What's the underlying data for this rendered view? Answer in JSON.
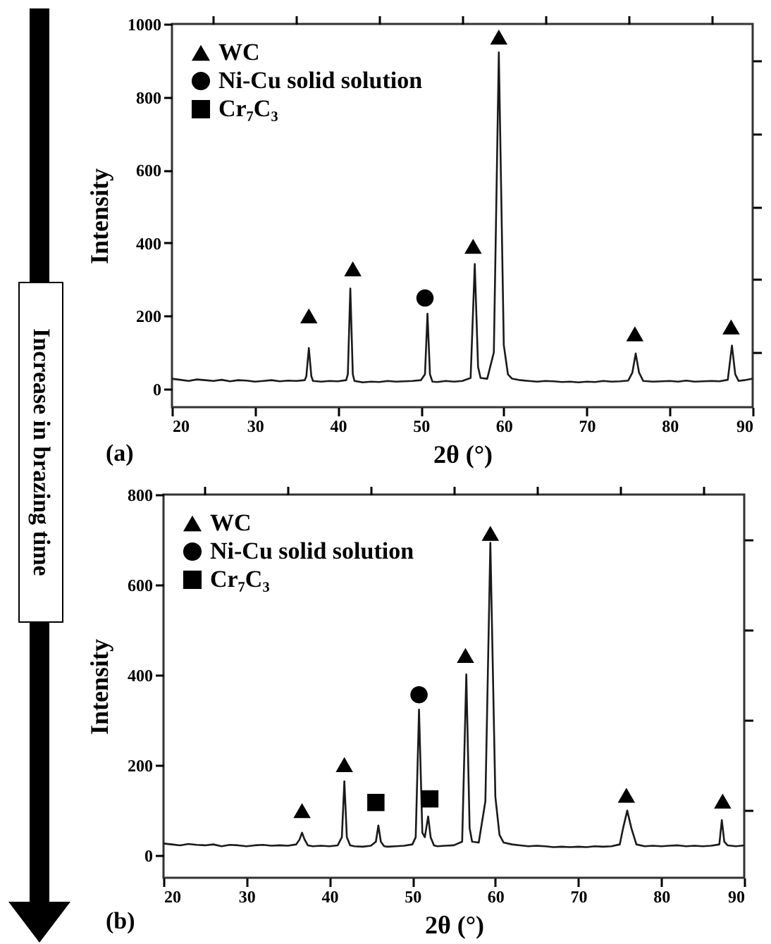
{
  "chart_data": [
    {
      "type": "line",
      "xlabel": "2θ (°)",
      "ylabel": "Intensity",
      "xlim": [
        20,
        90
      ],
      "ylim": [
        -50,
        1000
      ],
      "xticks": [
        20,
        {
          "value": 25,
          "label": null
        },
        30,
        {
          "value": 35,
          "label": null
        },
        40,
        {
          "value": 45,
          "label": null
        },
        50,
        {
          "value": 55,
          "label": null
        },
        60,
        {
          "value": 65,
          "label": null
        },
        70,
        {
          "value": 75,
          "label": null
        },
        80,
        {
          "value": 85,
          "label": null
        },
        90
      ],
      "yticks": [
        0,
        {
          "value": 100,
          "label": null
        },
        200,
        {
          "value": 300,
          "label": null
        },
        400,
        {
          "value": 500,
          "label": null
        },
        600,
        {
          "value": 700,
          "label": null
        },
        800,
        {
          "value": 900,
          "label": null
        },
        1000
      ],
      "legend": "top left",
      "annotations": [
        "(a)",
        "Increase in brazing time"
      ],
      "series": [
        {
          "type": "line",
          "color": "#1a1a1a",
          "x": [
            20,
            21,
            22,
            23,
            24,
            25,
            26,
            27,
            28,
            29,
            30,
            31,
            32,
            33,
            34,
            35,
            36,
            36.2,
            36.5,
            36.8,
            37,
            38,
            39,
            40,
            41,
            41.2,
            41.5,
            41.8,
            42,
            43,
            44,
            45,
            46,
            47,
            48,
            49,
            50,
            50.5,
            50.8,
            51.1,
            51.4,
            52,
            53,
            54,
            55,
            56,
            56.5,
            56.9,
            57.2,
            58,
            58.8,
            59.4,
            60,
            60.5,
            61,
            62,
            63,
            64,
            65,
            66,
            67,
            68,
            69,
            70,
            71,
            72,
            73,
            74,
            75,
            75.5,
            75.9,
            76.3,
            76.8,
            78,
            79,
            80,
            81,
            82,
            83,
            84,
            85,
            86,
            87,
            87.5,
            87.9,
            88.3,
            89,
            90
          ],
          "values": [
            28,
            25,
            22,
            26,
            24,
            22,
            25,
            21,
            24,
            23,
            20,
            22,
            24,
            21,
            23,
            22,
            24,
            35,
            112,
            35,
            22,
            20,
            22,
            21,
            24,
            40,
            275,
            40,
            22,
            18,
            20,
            19,
            22,
            20,
            21,
            22,
            24,
            40,
            206,
            40,
            20,
            19,
            22,
            20,
            22,
            30,
            342,
            60,
            30,
            28,
            100,
            922,
            120,
            40,
            28,
            24,
            22,
            20,
            22,
            21,
            19,
            20,
            18,
            20,
            19,
            22,
            20,
            21,
            23,
            45,
            97,
            45,
            22,
            20,
            21,
            22,
            20,
            23,
            20,
            21,
            22,
            21,
            25,
            119,
            40,
            22,
            24,
            28
          ]
        },
        {
          "type": "scatter",
          "name": "WC",
          "marker": "triangle",
          "color": "#000000",
          "x": [
            36.5,
            41.8,
            56.3,
            59.4,
            75.8,
            87.4
          ],
          "values": [
            200,
            329,
            391,
            964,
            151,
            170
          ]
        },
        {
          "type": "scatter",
          "name": "Ni-Cu solid solution",
          "marker": "circle",
          "color": "#000000",
          "x": [
            50.5
          ],
          "values": [
            249
          ]
        },
        {
          "type": "scatter",
          "name": "Cr₇C₃",
          "marker": "square",
          "color": "#000000"
        }
      ]
    },
    {
      "type": "line",
      "xlabel": "2θ (°)",
      "ylabel": "Intensity",
      "xlim": [
        20,
        90
      ],
      "ylim": [
        -50,
        800
      ],
      "xticks": [
        20,
        {
          "value": 25,
          "label": null
        },
        30,
        {
          "value": 35,
          "label": null
        },
        40,
        {
          "value": 45,
          "label": null
        },
        50,
        {
          "value": 55,
          "label": null
        },
        60,
        {
          "value": 65,
          "label": null
        },
        70,
        {
          "value": 75,
          "label": null
        },
        80,
        {
          "value": 85,
          "label": null
        },
        90
      ],
      "yticks": [
        0,
        {
          "value": 100,
          "label": null
        },
        200,
        {
          "value": 300,
          "label": null
        },
        400,
        {
          "value": 500,
          "label": null
        },
        600,
        {
          "value": 700,
          "label": null
        },
        800
      ],
      "legend": "top left",
      "annotations": [
        "(b)"
      ],
      "series": [
        {
          "type": "line",
          "color": "#1a1a1a",
          "x": [
            20,
            21,
            22,
            23,
            24,
            25,
            26,
            27,
            28,
            29,
            30,
            31,
            32,
            33,
            34,
            35,
            36,
            36.4,
            36.7,
            37,
            37.4,
            38,
            39,
            40,
            41,
            41.5,
            41.8,
            42.1,
            42.5,
            43,
            44,
            45,
            45.6,
            45.9,
            46.2,
            46.6,
            47,
            48,
            49,
            50,
            50.4,
            50.8,
            51.2,
            51.5,
            51.9,
            52.2,
            52.6,
            53,
            54,
            55,
            56,
            56.5,
            56.9,
            57.2,
            58,
            58.8,
            59.4,
            60,
            60.5,
            61,
            62,
            63,
            64,
            65,
            66,
            67,
            68,
            69,
            70,
            71,
            72,
            73,
            74,
            75,
            75.4,
            75.9,
            76.4,
            77,
            78,
            79,
            80,
            81,
            82,
            83,
            84,
            85,
            86,
            87,
            87.3,
            87.6,
            88,
            89,
            90
          ],
          "values": [
            26,
            24,
            22,
            25,
            23,
            22,
            24,
            20,
            23,
            22,
            20,
            22,
            23,
            21,
            22,
            21,
            24,
            35,
            50,
            35,
            22,
            20,
            21,
            20,
            22,
            40,
            164,
            40,
            22,
            20,
            19,
            21,
            30,
            66,
            30,
            20,
            19,
            20,
            21,
            24,
            40,
            323,
            50,
            40,
            86,
            40,
            22,
            20,
            21,
            22,
            30,
            401,
            60,
            30,
            28,
            120,
            693,
            130,
            45,
            28,
            24,
            22,
            20,
            21,
            20,
            18,
            19,
            18,
            19,
            18,
            20,
            19,
            20,
            24,
            60,
            99,
            60,
            24,
            20,
            21,
            20,
            21,
            22,
            20,
            21,
            20,
            21,
            24,
            78,
            30,
            22,
            20,
            22
          ]
        },
        {
          "type": "scatter",
          "name": "WC",
          "marker": "triangle",
          "color": "#000000",
          "x": [
            36.7,
            41.8,
            56.4,
            59.4,
            75.8,
            87.4
          ],
          "values": [
            99,
            201,
            443,
            714,
            133,
            120
          ]
        },
        {
          "type": "scatter",
          "name": "Ni-Cu solid solution",
          "marker": "circle",
          "color": "#000000",
          "x": [
            50.8
          ],
          "values": [
            356
          ]
        },
        {
          "type": "scatter",
          "name": "Cr₇C₃",
          "marker": "square",
          "color": "#000000",
          "x": [
            45.6,
            52.1
          ],
          "values": [
            117,
            125
          ]
        }
      ]
    }
  ]
}
